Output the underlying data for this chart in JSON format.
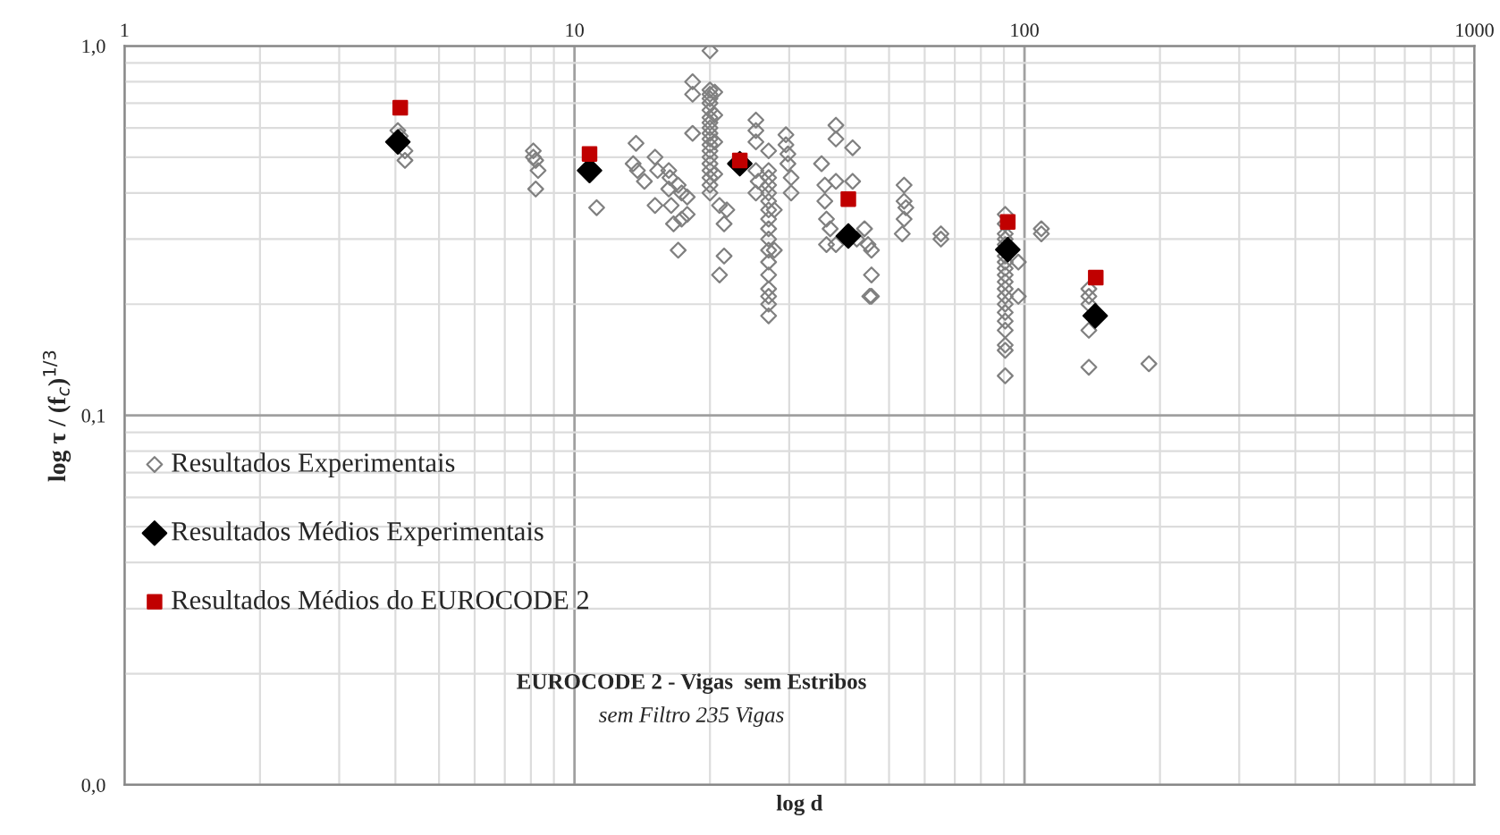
{
  "chart_data": {
    "type": "scatter",
    "title": "EUROCODE 2 - Vigas  sem Estribos",
    "subtitle": "sem Filtro 235 Vigas",
    "xlabel": "log d",
    "ylabel": "log τ / (f$_{c}$)$^{1/3}$",
    "log": "xy",
    "xlim": [
      1,
      1000
    ],
    "ylim": [
      0.01,
      1
    ],
    "xticks": [
      1,
      10,
      100,
      1000
    ],
    "yticks": [
      {
        "value": 0.01,
        "label": "0,0"
      },
      {
        "value": 0.1,
        "label": "0,1"
      },
      {
        "value": 1,
        "label": "1,0"
      }
    ],
    "grid": true,
    "legend": "left",
    "series": [
      {
        "name": "Resultados Experimentais",
        "color": "#808080",
        "marker": "diamond",
        "x": [
          4.05,
          4.1,
          4.2,
          4.2,
          8.1,
          8.1,
          8.2,
          8.3,
          8.2,
          11.2,
          13.7,
          15.1,
          13.5,
          13.8,
          14.3,
          15.3,
          16.2,
          16.3,
          16.2,
          17.0,
          17.3,
          17.8,
          15.1,
          16.4,
          16.6,
          17.3,
          17.8,
          17.0,
          18.3,
          18.3,
          18.3,
          20.0,
          20.0,
          20.0,
          20.0,
          20.0,
          20.0,
          20.0,
          20.0,
          20.0,
          20.0,
          20.0,
          20.0,
          20.0,
          20.0,
          20.0,
          20.0,
          20.0,
          20.0,
          20.0,
          20.5,
          20.5,
          20.5,
          20.5,
          21.0,
          21.5,
          21.5,
          21.0,
          21.8,
          25.3,
          25.3,
          25.3,
          27.0,
          25.3,
          25.6,
          25.3,
          27.0,
          27.0,
          27.0,
          27.0,
          27.0,
          27.0,
          27.0,
          27.0,
          27.0,
          27.0,
          27.0,
          27.0,
          27.0,
          27.0,
          27.0,
          27.0,
          27.8,
          27.8,
          29.5,
          29.5,
          29.8,
          29.8,
          30.3,
          30.3,
          38.1,
          38.1,
          41.5,
          35.4,
          36.0,
          38.1,
          41.5,
          36.0,
          36.3,
          37.0,
          36.3,
          38.1,
          42.4,
          44.1,
          44.9,
          45.7,
          45.7,
          45.3,
          45.7,
          54.0,
          54.0,
          54.5,
          54.0,
          53.5,
          65.2,
          65.2,
          90.6,
          90.6,
          90.6,
          90.6,
          90.6,
          90.6,
          90.6,
          90.6,
          90.6,
          90.6,
          90.6,
          90.6,
          90.6,
          90.6,
          90.6,
          90.6,
          90.6,
          90.6,
          90.6,
          96.9,
          96.9,
          109,
          109,
          139,
          139,
          139,
          139,
          139,
          189
        ],
        "values": [
          0.59,
          0.57,
          0.52,
          0.49,
          0.52,
          0.5,
          0.49,
          0.46,
          0.41,
          0.365,
          0.545,
          0.5,
          0.48,
          0.46,
          0.43,
          0.46,
          0.46,
          0.44,
          0.41,
          0.42,
          0.4,
          0.39,
          0.37,
          0.37,
          0.33,
          0.34,
          0.35,
          0.28,
          0.8,
          0.74,
          0.58,
          0.97,
          0.76,
          0.74,
          0.72,
          0.7,
          0.67,
          0.64,
          0.62,
          0.6,
          0.58,
          0.56,
          0.54,
          0.52,
          0.5,
          0.48,
          0.46,
          0.44,
          0.42,
          0.4,
          0.75,
          0.65,
          0.55,
          0.45,
          0.37,
          0.33,
          0.27,
          0.24,
          0.36,
          0.63,
          0.59,
          0.55,
          0.52,
          0.46,
          0.43,
          0.4,
          0.44,
          0.42,
          0.4,
          0.38,
          0.36,
          0.34,
          0.32,
          0.3,
          0.28,
          0.26,
          0.24,
          0.22,
          0.21,
          0.2,
          0.186,
          0.46,
          0.36,
          0.28,
          0.575,
          0.54,
          0.51,
          0.48,
          0.44,
          0.4,
          0.61,
          0.56,
          0.53,
          0.48,
          0.42,
          0.43,
          0.43,
          0.38,
          0.34,
          0.32,
          0.29,
          0.29,
          0.3,
          0.32,
          0.29,
          0.28,
          0.24,
          0.21,
          0.21,
          0.42,
          0.38,
          0.365,
          0.34,
          0.31,
          0.31,
          0.3,
          0.35,
          0.33,
          0.31,
          0.3,
          0.29,
          0.27,
          0.26,
          0.25,
          0.24,
          0.23,
          0.22,
          0.21,
          0.2,
          0.19,
          0.18,
          0.17,
          0.155,
          0.15,
          0.128,
          0.26,
          0.21,
          0.32,
          0.31,
          0.22,
          0.21,
          0.2,
          0.17,
          0.135,
          0.138
        ]
      },
      {
        "name": "Resultados Médios Experimentais",
        "color": "#000000",
        "marker": "diamond",
        "x": [
          4.05,
          10.8,
          23.3,
          40.6,
          91.8,
          143.6
        ],
        "values": [
          0.55,
          0.46,
          0.48,
          0.306,
          0.281,
          0.186
        ]
      },
      {
        "name": "Resultados Médios do EUROCODE 2",
        "color": "#c00000",
        "marker": "square",
        "x": [
          4.1,
          10.8,
          23.3,
          40.6,
          91.8,
          144
        ],
        "values": [
          0.68,
          0.51,
          0.49,
          0.385,
          0.334,
          0.236
        ]
      }
    ]
  }
}
